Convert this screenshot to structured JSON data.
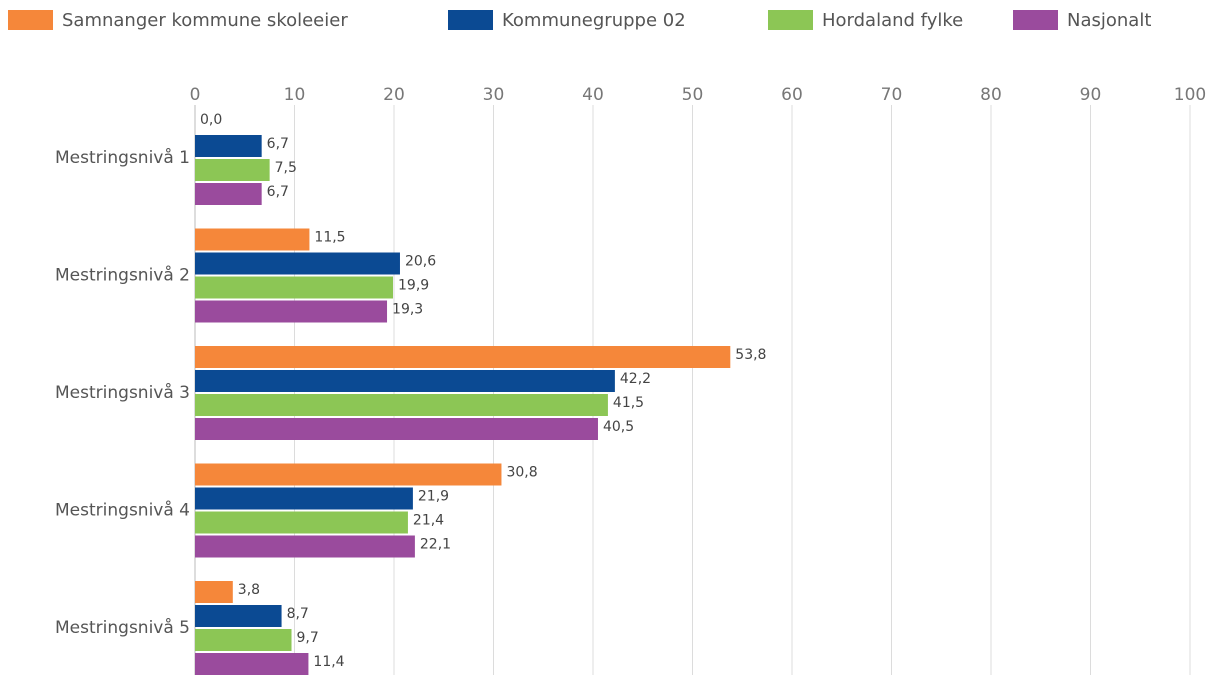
{
  "chart_data": {
    "type": "bar",
    "orientation": "horizontal",
    "categories": [
      "Mestringsnivå 1",
      "Mestringsnivå 2",
      "Mestringsnivå 3",
      "Mestringsnivå 4",
      "Mestringsnivå 5"
    ],
    "series": [
      {
        "name": "Samnanger kommune skoleeier",
        "color": "#f5873a",
        "values": [
          0.0,
          11.5,
          53.8,
          30.8,
          3.8
        ],
        "value_labels": [
          "0,0",
          "11,5",
          "53,8",
          "30,8",
          "3,8"
        ]
      },
      {
        "name": "Kommunegruppe 02",
        "color": "#0b4a93",
        "values": [
          6.7,
          20.6,
          42.2,
          21.9,
          8.7
        ],
        "value_labels": [
          "6,7",
          "20,6",
          "42,2",
          "21,9",
          "8,7"
        ]
      },
      {
        "name": "Hordaland fylke",
        "color": "#8cc655",
        "values": [
          7.5,
          19.9,
          41.5,
          21.4,
          9.7
        ],
        "value_labels": [
          "7,5",
          "19,9",
          "41,5",
          "21,4",
          "9,7"
        ]
      },
      {
        "name": "Nasjonalt",
        "color": "#9a4b9d",
        "values": [
          6.7,
          19.3,
          40.5,
          22.1,
          11.4
        ],
        "value_labels": [
          "6,7",
          "19,3",
          "40,5",
          "22,1",
          "11,4"
        ]
      }
    ],
    "xlim": [
      0,
      100
    ],
    "xticks": [
      0,
      10,
      20,
      30,
      40,
      50,
      60,
      70,
      80,
      90,
      100
    ],
    "grid": true,
    "legend": "top"
  }
}
